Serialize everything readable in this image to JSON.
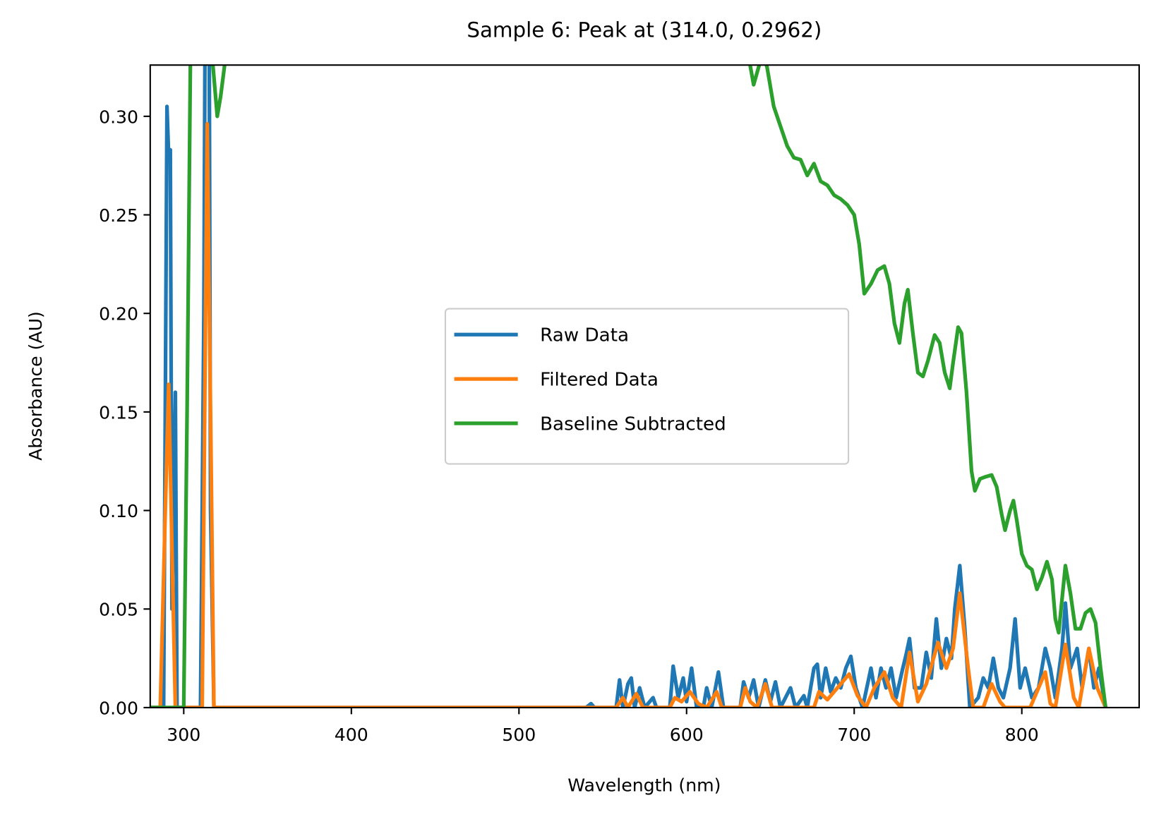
{
  "chart_data": {
    "type": "line",
    "title": "Sample 6: Peak at (314.0, 0.2962)",
    "x_label": "Wavelength (nm)",
    "y_label": "Absorbance (AU)",
    "xlim": [
      280,
      870
    ],
    "ylim": [
      0,
      0.326
    ],
    "xticks": [
      300,
      400,
      500,
      600,
      700,
      800
    ],
    "yticks": [
      {
        "value": 0,
        "label": "0.00"
      },
      {
        "value": 0.05,
        "label": "0.05"
      },
      {
        "value": 0.1,
        "label": "0.10"
      },
      {
        "value": 0.15,
        "label": "0.15"
      },
      {
        "value": 0.2,
        "label": "0.20"
      },
      {
        "value": 0.25,
        "label": "0.25"
      },
      {
        "value": 0.3,
        "label": "0.30"
      }
    ],
    "legend": "center",
    "grid": false,
    "series": [
      {
        "name": "Raw Data",
        "color": "#1f77b4",
        "x": [
          280,
          288,
          290,
          291,
          292,
          293,
          295,
          296,
          310,
          312,
          313,
          315,
          316,
          318,
          540,
          543,
          545,
          558,
          560,
          562,
          565,
          567,
          569,
          572,
          575,
          580,
          582,
          590,
          592,
          595,
          598,
          600,
          603,
          606,
          610,
          612,
          615,
          619,
          622,
          632,
          634,
          637,
          640,
          643,
          647,
          650,
          653,
          656,
          662,
          665,
          670,
          672,
          676,
          678,
          680,
          683,
          686,
          689,
          692,
          695,
          698,
          701,
          705,
          710,
          713,
          716,
          719,
          722,
          725,
          729,
          731,
          733,
          736,
          740,
          743,
          746,
          749,
          752,
          755,
          758,
          760,
          763,
          766,
          769,
          774,
          777,
          780,
          783,
          786,
          789,
          793,
          796,
          799,
          802,
          806,
          810,
          814,
          817,
          820,
          824,
          826,
          829,
          833,
          836,
          840,
          843,
          846,
          849,
          850
        ],
        "values": [
          0,
          0,
          0.305,
          0.28,
          0.283,
          0.05,
          0.16,
          0,
          0,
          0.2,
          0.4,
          0.4,
          0.1,
          0,
          0,
          0.002,
          0,
          0,
          0.014,
          0,
          0.012,
          0.015,
          0,
          0.01,
          0,
          0.005,
          0,
          0,
          0.021,
          0.005,
          0.015,
          0.003,
          0.02,
          0,
          0,
          0.01,
          0,
          0.018,
          0,
          0,
          0.013,
          0.005,
          0.014,
          0,
          0.014,
          0.003,
          0.013,
          0,
          0.01,
          0,
          0.006,
          0,
          0.02,
          0.022,
          0.005,
          0.02,
          0.008,
          0.015,
          0.01,
          0.02,
          0.026,
          0.01,
          0,
          0.02,
          0.005,
          0.02,
          0.01,
          0.02,
          0.005,
          0.02,
          0.027,
          0.035,
          0.01,
          0.01,
          0.028,
          0.015,
          0.045,
          0.02,
          0.035,
          0.025,
          0.05,
          0.072,
          0.04,
          0,
          0.005,
          0.015,
          0.01,
          0.025,
          0.01,
          0.005,
          0.02,
          0.045,
          0.01,
          0.02,
          0.005,
          0.01,
          0.03,
          0.02,
          0.005,
          0.03,
          0.053,
          0.02,
          0.03,
          0.01,
          0.03,
          0.01,
          0.02,
          0.005,
          0
        ]
      },
      {
        "name": "Filtered Data",
        "color": "#ff7f0e",
        "x": [
          280,
          286,
          289,
          291,
          293,
          295,
          311,
          313,
          314,
          316,
          318,
          558,
          562,
          565,
          570,
          574,
          590,
          593,
          597,
          602,
          607,
          612,
          618,
          621,
          632,
          635,
          638,
          642,
          647,
          651,
          676,
          679,
          684,
          690,
          697,
          702,
          707,
          712,
          718,
          723,
          728,
          733,
          738,
          743,
          750,
          755,
          759,
          763,
          768,
          771,
          777,
          782,
          787,
          790,
          805,
          814,
          817,
          820,
          826,
          831,
          834,
          840,
          845,
          850
        ],
        "values": [
          0,
          0,
          0.1,
          0.164,
          0.08,
          0,
          0,
          0.2,
          0.2962,
          0.15,
          0,
          0,
          0.005,
          0,
          0.007,
          0,
          0,
          0.005,
          0.003,
          0.008,
          0.002,
          0,
          0.008,
          0,
          0,
          0.01,
          0.003,
          0,
          0.012,
          0,
          0,
          0.008,
          0.004,
          0.01,
          0.017,
          0.006,
          0,
          0.01,
          0.018,
          0.005,
          0,
          0.028,
          0.003,
          0.012,
          0.033,
          0.02,
          0.03,
          0.058,
          0.02,
          0,
          0,
          0.012,
          0.003,
          0,
          0,
          0.018,
          0.002,
          0,
          0.032,
          0.005,
          0,
          0.03,
          0.01,
          0
        ]
      },
      {
        "name": "Baseline Subtracted",
        "color": "#2ca02c",
        "x": [
          280,
          300,
          302,
          304,
          312,
          316,
          320,
          322,
          325,
          330,
          600,
          636,
          640,
          644,
          646,
          648,
          652,
          656,
          660,
          664,
          668,
          672,
          676,
          680,
          684,
          688,
          692,
          696,
          700,
          703,
          706,
          710,
          714,
          718,
          721,
          724,
          727,
          730,
          732,
          735,
          738,
          741,
          744,
          748,
          751,
          754,
          757,
          759,
          762,
          764,
          767,
          770,
          772,
          775,
          778,
          782,
          785,
          788,
          790,
          793,
          795,
          797,
          800,
          803,
          806,
          809,
          812,
          815,
          818,
          820,
          822,
          824,
          826,
          829,
          832,
          835,
          838,
          841,
          844,
          847,
          850
        ],
        "values": [
          0,
          0,
          0.15,
          0.33,
          0.4,
          0.34,
          0.3,
          0.31,
          0.33,
          0.4,
          0.4,
          0.335,
          0.316,
          0.328,
          0.33,
          0.325,
          0.305,
          0.295,
          0.285,
          0.279,
          0.278,
          0.27,
          0.276,
          0.267,
          0.265,
          0.26,
          0.258,
          0.255,
          0.25,
          0.235,
          0.21,
          0.215,
          0.222,
          0.224,
          0.215,
          0.195,
          0.185,
          0.205,
          0.212,
          0.19,
          0.17,
          0.168,
          0.176,
          0.189,
          0.185,
          0.17,
          0.162,
          0.175,
          0.193,
          0.19,
          0.16,
          0.12,
          0.11,
          0.116,
          0.117,
          0.118,
          0.112,
          0.098,
          0.09,
          0.1,
          0.105,
          0.095,
          0.078,
          0.072,
          0.07,
          0.06,
          0.066,
          0.074,
          0.065,
          0.045,
          0.038,
          0.055,
          0.072,
          0.058,
          0.04,
          0.04,
          0.048,
          0.05,
          0.043,
          0.02,
          0
        ]
      }
    ]
  }
}
